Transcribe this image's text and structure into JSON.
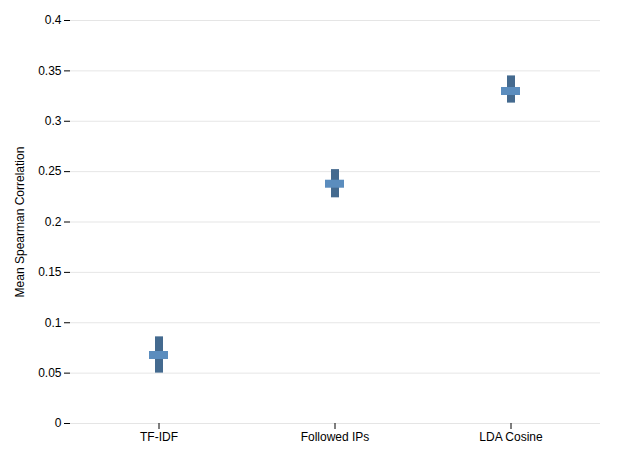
{
  "chart_data": {
    "type": "errorbar",
    "categories": [
      "TF-IDF",
      "Followed IPs",
      "LDA Cosine"
    ],
    "values": [
      0.068,
      0.238,
      0.33
    ],
    "y_err_low": [
      0.018,
      0.014,
      0.012
    ],
    "y_err_high": [
      0.018,
      0.014,
      0.015
    ],
    "color": "#5B8DBE",
    "ylabel": "Mean Spearman Correlation",
    "ylim": [
      0,
      0.4
    ],
    "yticks": [
      0,
      0.05,
      0.1,
      0.15,
      0.2,
      0.25,
      0.3,
      0.35,
      0.4
    ],
    "grid": true
  }
}
